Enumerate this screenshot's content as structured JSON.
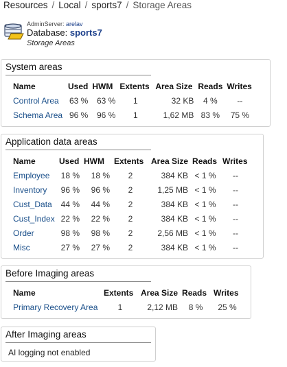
{
  "breadcrumb": {
    "items": [
      "Resources",
      "Local",
      "sports7"
    ],
    "current": "Storage Areas",
    "separator": "/"
  },
  "header": {
    "admin_label": "AdminServer:",
    "admin_value": "arelav",
    "db_label": "Database:",
    "db_name": "sports7",
    "subtitle": "Storage Areas"
  },
  "system_areas": {
    "title": "System areas",
    "columns": [
      "Name",
      "Used",
      "HWM",
      "Extents",
      "Area Size",
      "Reads",
      "Writes"
    ],
    "rows": [
      [
        "Control Area",
        "63 %",
        "63 %",
        "1",
        "32 KB",
        "4 %",
        "--"
      ],
      [
        "Schema Area",
        "96 %",
        "96 %",
        "1",
        "1,62 MB",
        "83 %",
        "75 %"
      ]
    ]
  },
  "application_areas": {
    "title": "Application data areas",
    "columns": [
      "Name",
      "Used",
      "HWM",
      "Extents",
      "Area Size",
      "Reads",
      "Writes"
    ],
    "rows": [
      [
        "Employee",
        "18 %",
        "18 %",
        "2",
        "384 KB",
        "< 1 %",
        "--"
      ],
      [
        "Inventory",
        "96 %",
        "96 %",
        "2",
        "1,25 MB",
        "< 1 %",
        "--"
      ],
      [
        "Cust_Data",
        "44 %",
        "44 %",
        "2",
        "384 KB",
        "< 1 %",
        "--"
      ],
      [
        "Cust_Index",
        "22 %",
        "22 %",
        "2",
        "384 KB",
        "< 1 %",
        "--"
      ],
      [
        "Order",
        "98 %",
        "98 %",
        "2",
        "2,56 MB",
        "< 1 %",
        "--"
      ],
      [
        "Misc",
        "27 %",
        "27 %",
        "2",
        "384 KB",
        "< 1 %",
        "--"
      ]
    ]
  },
  "before_imaging": {
    "title": "Before Imaging areas",
    "columns": [
      "Name",
      "Extents",
      "Area Size",
      "Reads",
      "Writes"
    ],
    "rows": [
      [
        "Primary Recovery Area",
        "1",
        "2,12 MB",
        "8 %",
        "25 %"
      ]
    ]
  },
  "after_imaging": {
    "title": "After Imaging areas",
    "message": "AI logging not enabled"
  },
  "colors": {
    "link": "#1a4f8a",
    "panel_border": "#cfcfcf"
  },
  "icons": {
    "database": "database-icon"
  }
}
